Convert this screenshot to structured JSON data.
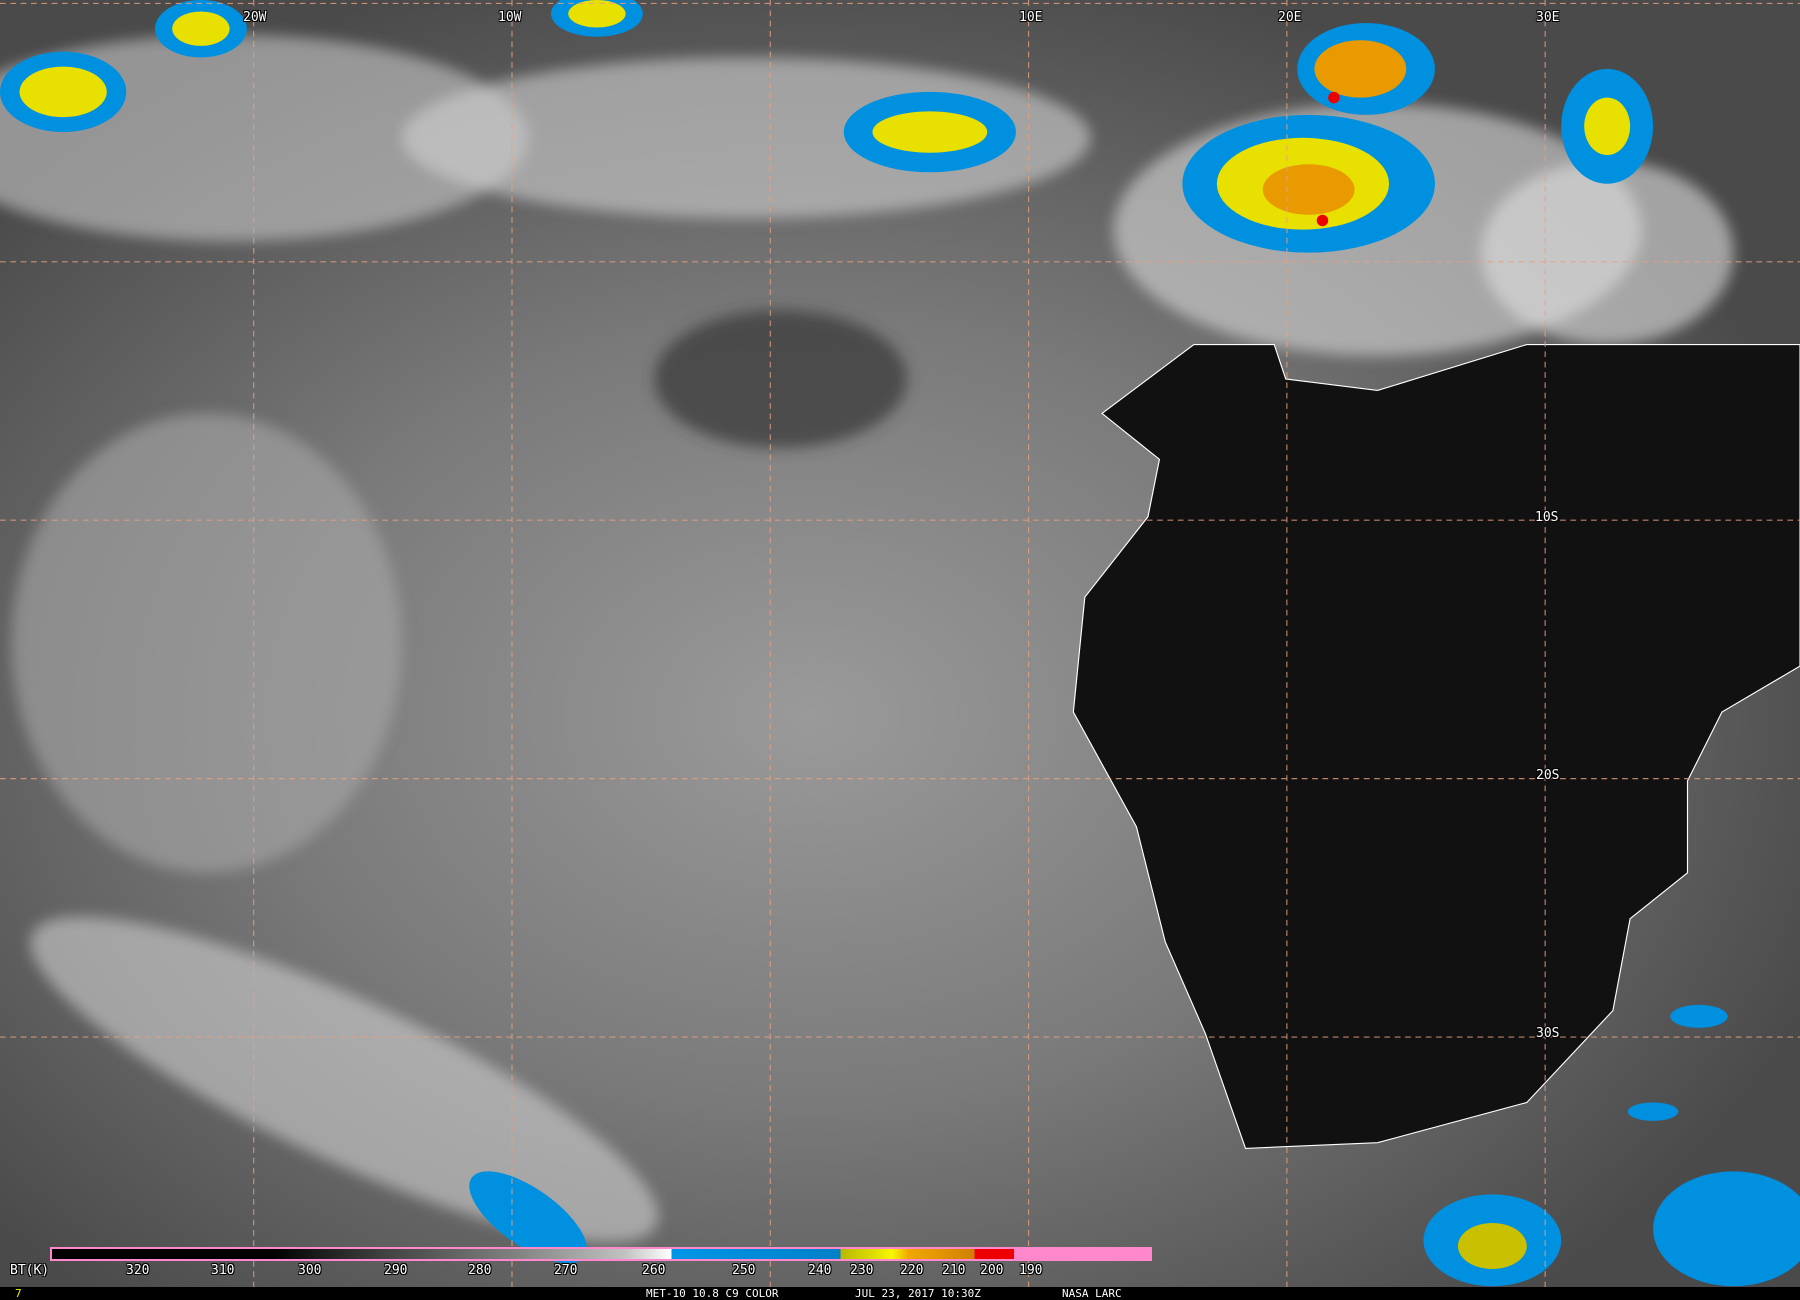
{
  "map": {
    "longitude_labels": [
      "20W",
      "10W",
      "10E",
      "20E",
      "30E"
    ],
    "latitude_labels": [
      "10S",
      "20S",
      "30S"
    ],
    "grid_line_color": "#e8a080",
    "border_color": "#ffffff"
  },
  "colorbar": {
    "label": "BT(K)",
    "ticks": [
      "320",
      "310",
      "300",
      "290",
      "280",
      "270",
      "260",
      "250",
      "240",
      "230",
      "220",
      "210",
      "200",
      "190"
    ],
    "colors": {
      "cold_pink": "#ff88cc",
      "red": "#ee0000",
      "orange": "#e89a00",
      "yellow": "#f0f000",
      "blue": "#0090e0",
      "white": "#ffffff",
      "black": "#000000"
    }
  },
  "footer": {
    "frame_number": "7",
    "product": "MET-10 10.8 C9 COLOR",
    "datetime": "JUL 23, 2017 10:30Z",
    "credit": "NASA LARC"
  }
}
